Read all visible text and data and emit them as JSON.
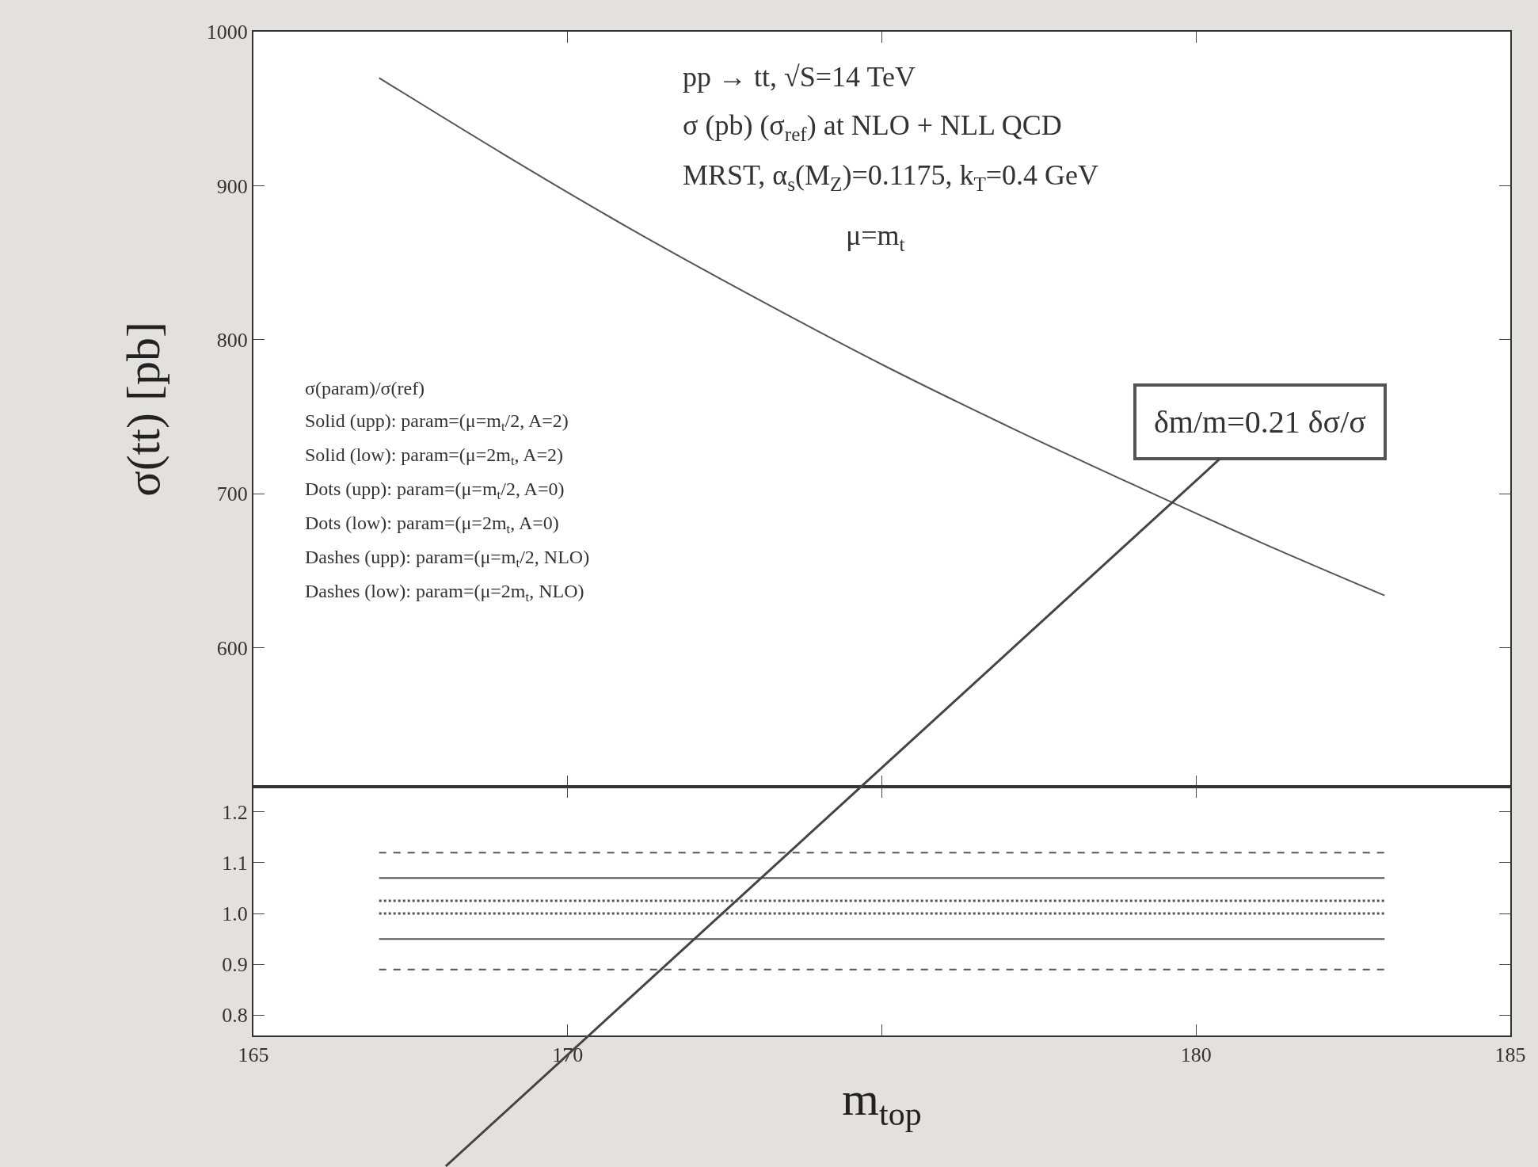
{
  "chart_data": [
    {
      "type": "line",
      "ylabel": "σ(tt) [pb]",
      "x": [
        167,
        169,
        171,
        173,
        175,
        177,
        179,
        181,
        183
      ],
      "series": [
        {
          "color": "#555555",
          "values": [
            970,
            920,
            872,
            827,
            784,
            744,
            706,
            669,
            634
          ],
          "line_style": "solid"
        }
      ],
      "xlim": [
        165,
        185
      ],
      "xticks": [
        165,
        170,
        {
          "value": 175,
          "label": null
        },
        180,
        185
      ],
      "ylim": [
        510,
        1000
      ],
      "yticks": [
        600,
        700,
        800,
        900,
        1000
      ],
      "tick_labels": "y",
      "marker": "none",
      "annotations": [
        "pp → tt, √S=14 TeV",
        "σ (pb) (σ$_{ref}$) at NLO + NLL QCD",
        "MRST, α$_{s}$(M$_{Z}$)=0.1175, k$_{T}$=0.4 GeV",
        "μ=m$_{t}$",
        "σ(param)/σ(ref)",
        "Solid (upp): param=(μ=m$_{t}$/2, A=2)",
        "Solid (low): param=(μ=2m$_{t}$, A=2)",
        "Dots (upp): param=(μ=m$_{t}$/2, A=0)",
        "Dots (low): param=(μ=2m$_{t}$, A=0)",
        "Dashes (upp): param=(μ=m$_{t}$/2, NLO)",
        "Dashes (low): param=(μ=2m$_{t}$, NLO)",
        "δm/m=0.21 δσ/σ"
      ]
    },
    {
      "type": "line",
      "xlabel": "m$_{top}$",
      "x": [
        167,
        183
      ],
      "series": [
        {
          "color": "#555555",
          "values": [
            1.12,
            1.12
          ],
          "line_style": "dashed"
        },
        {
          "color": "#555555",
          "values": [
            1.07,
            1.07
          ],
          "line_style": "solid"
        },
        {
          "color": "#555555",
          "values": [
            1.025,
            1.025
          ],
          "line_style": "dotted"
        },
        {
          "color": "#555555",
          "values": [
            1.0,
            1.0
          ],
          "line_style": "dotted"
        },
        {
          "color": "#555555",
          "values": [
            0.95,
            0.95
          ],
          "line_style": "solid"
        },
        {
          "color": "#555555",
          "values": [
            0.89,
            0.89
          ],
          "line_style": "dashed"
        }
      ],
      "xlim": [
        165,
        185
      ],
      "xticks": [
        165,
        170,
        {
          "value": 175,
          "label": null
        },
        180,
        185
      ],
      "ylim": [
        0.76,
        1.25
      ],
      "yticks": [
        0.8,
        0.9,
        {
          "value": 1.0,
          "label": "1.0"
        },
        1.1,
        1.2
      ],
      "marker": "none"
    }
  ]
}
